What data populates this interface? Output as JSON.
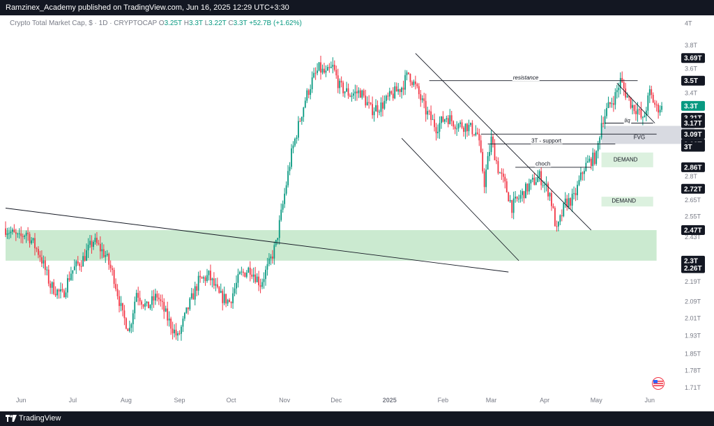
{
  "header": {
    "publisher_line": "Ramzinex_Academy published on TradingView.com, Jun 16, 2025 12:29 UTC+3:30"
  },
  "legend": {
    "symbol": "Crypto Total Market Cap, $ · 1D · CRYPTOCAP",
    "o_label": "O",
    "o": "3.25T",
    "h_label": "H",
    "h": "3.3T",
    "l_label": "L",
    "l": "3.22T",
    "c_label": "C",
    "c": "3.3T",
    "change": "+52.7B (+1.62%)"
  },
  "footer": {
    "brand": "TradingView"
  },
  "colors": {
    "up": "#089981",
    "down": "#f23645",
    "zone": "#b9e3c0",
    "fvg": "#d1d4dc",
    "tag": "#131722"
  },
  "chart_data": {
    "type": "candlestick",
    "y_scale": "log",
    "ylim": [
      1.68,
      4.05
    ],
    "x_start": "2025-05-22",
    "months": [
      "Jun",
      "Jul",
      "Aug",
      "Sep",
      "Oct",
      "Nov",
      "Dec",
      "2025",
      "Feb",
      "Mar",
      "Apr",
      "May",
      "Jun"
    ],
    "month_days": [
      9,
      39,
      70,
      101,
      131,
      162,
      192,
      223,
      254,
      282,
      313,
      343,
      374
    ],
    "y_ticks": [
      "4T",
      "3.8T",
      "3.6T",
      "3.4T",
      "3.2T",
      "3T",
      "2.8T",
      "2.65T",
      "2.55T",
      "2.43T",
      "2.19T",
      "2.09T",
      "2.01T",
      "1.93T",
      "1.85T",
      "1.78T",
      "1.71T"
    ],
    "y_tick_values": [
      4.0,
      3.8,
      3.6,
      3.4,
      3.2,
      3.0,
      2.8,
      2.65,
      2.55,
      2.43,
      2.19,
      2.09,
      2.01,
      1.93,
      1.85,
      1.78,
      1.71
    ],
    "price_tags": [
      {
        "label": "3.69T",
        "value": 3.69,
        "color": "#131722"
      },
      {
        "label": "3.5T",
        "value": 3.5,
        "color": "#131722"
      },
      {
        "label": "3.3T",
        "value": 3.3,
        "color": "#089981"
      },
      {
        "label": "3.21T",
        "value": 3.21,
        "color": "#131722"
      },
      {
        "label": "3.17T",
        "value": 3.17,
        "color": "#131722"
      },
      {
        "label": "3.09T",
        "value": 3.09,
        "color": "#131722"
      },
      {
        "label": "3.02T",
        "value": 3.02,
        "color": "#131722"
      },
      {
        "label": "3T",
        "value": 3.0,
        "color": "#131722"
      },
      {
        "label": "2.86T",
        "value": 2.86,
        "color": "#131722"
      },
      {
        "label": "2.72T",
        "value": 2.72,
        "color": "#131722"
      },
      {
        "label": "2.47T",
        "value": 2.47,
        "color": "#131722"
      },
      {
        "label": "2.3T",
        "value": 2.3,
        "color": "#131722"
      },
      {
        "label": "2.26T",
        "value": 2.26,
        "color": "#131722"
      }
    ],
    "path_points": [
      [
        0,
        2.48
      ],
      [
        8,
        2.42
      ],
      [
        12,
        2.46
      ],
      [
        20,
        2.33
      ],
      [
        26,
        2.17
      ],
      [
        33,
        2.12
      ],
      [
        38,
        2.24
      ],
      [
        45,
        2.31
      ],
      [
        51,
        2.41
      ],
      [
        58,
        2.33
      ],
      [
        63,
        2.21
      ],
      [
        68,
        2.02
      ],
      [
        72,
        1.96
      ],
      [
        76,
        2.14
      ],
      [
        82,
        2.06
      ],
      [
        88,
        2.12
      ],
      [
        94,
        2.01
      ],
      [
        100,
        1.92
      ],
      [
        106,
        2.06
      ],
      [
        112,
        2.19
      ],
      [
        118,
        2.22
      ],
      [
        124,
        2.12
      ],
      [
        130,
        2.09
      ],
      [
        136,
        2.22
      ],
      [
        142,
        2.26
      ],
      [
        148,
        2.18
      ],
      [
        153,
        2.28
      ],
      [
        157,
        2.39
      ],
      [
        161,
        2.62
      ],
      [
        166,
        2.95
      ],
      [
        170,
        3.15
      ],
      [
        174,
        3.35
      ],
      [
        178,
        3.5
      ],
      [
        182,
        3.6
      ],
      [
        186,
        3.55
      ],
      [
        190,
        3.61
      ],
      [
        194,
        3.45
      ],
      [
        200,
        3.39
      ],
      [
        206,
        3.41
      ],
      [
        212,
        3.27
      ],
      [
        218,
        3.3
      ],
      [
        224,
        3.38
      ],
      [
        230,
        3.45
      ],
      [
        234,
        3.56
      ],
      [
        238,
        3.45
      ],
      [
        244,
        3.26
      ],
      [
        250,
        3.14
      ],
      [
        256,
        3.22
      ],
      [
        262,
        3.16
      ],
      [
        268,
        3.15
      ],
      [
        274,
        3.09
      ],
      [
        278,
        2.76
      ],
      [
        282,
        3.05
      ],
      [
        286,
        2.85
      ],
      [
        290,
        2.74
      ],
      [
        294,
        2.61
      ],
      [
        298,
        2.66
      ],
      [
        304,
        2.74
      ],
      [
        310,
        2.8
      ],
      [
        316,
        2.69
      ],
      [
        320,
        2.46
      ],
      [
        325,
        2.63
      ],
      [
        330,
        2.66
      ],
      [
        336,
        2.86
      ],
      [
        340,
        2.91
      ],
      [
        343,
        2.93
      ],
      [
        346,
        3.18
      ],
      [
        350,
        3.29
      ],
      [
        354,
        3.38
      ],
      [
        357,
        3.5
      ],
      [
        360,
        3.4
      ],
      [
        364,
        3.3
      ],
      [
        367,
        3.27
      ],
      [
        370,
        3.18
      ],
      [
        374,
        3.4
      ],
      [
        378,
        3.28
      ],
      [
        381,
        3.3
      ]
    ],
    "zones": [
      {
        "name": "main-demand",
        "d0": 0,
        "d1": 378,
        "lo": 2.3,
        "hi": 2.47
      },
      {
        "name": "fvg",
        "d0": 346,
        "d1": 400,
        "lo": 3.02,
        "hi": 3.15
      },
      {
        "name": "demand-upper",
        "d0": 346,
        "d1": 376,
        "lo": 2.86,
        "hi": 2.96
      },
      {
        "name": "demand-lower",
        "d0": 346,
        "d1": 376,
        "lo": 2.61,
        "hi": 2.67
      }
    ],
    "lines": [
      {
        "name": "long-trendline",
        "d0": 0,
        "v0": 2.6,
        "d1": 292,
        "v1": 2.24
      },
      {
        "name": "channel-upper",
        "d0": 238,
        "d1": 340,
        "v0": 3.73,
        "v1": 2.47
      },
      {
        "name": "channel-lower",
        "d0": 230,
        "d1": 298,
        "v0": 3.06,
        "v1": 2.3
      },
      {
        "name": "resistance-line",
        "d0": 246,
        "d1": 367,
        "v0": 3.5,
        "v1": 3.5
      },
      {
        "name": "mini-trendline",
        "d0": 355,
        "d1": 377,
        "v0": 3.48,
        "v1": 3.17
      },
      {
        "name": "support-3t",
        "d0": 280,
        "d1": 354,
        "v0": 3.02,
        "v1": 3.02
      },
      {
        "name": "fvg-line",
        "d0": 276,
        "d1": 378,
        "v0": 3.09,
        "v1": 3.09
      },
      {
        "name": "choch-line",
        "d0": 296,
        "d1": 340,
        "v0": 2.86,
        "v1": 2.86
      },
      {
        "name": "liq-line",
        "d0": 348,
        "d1": 376,
        "v0": 3.17,
        "v1": 3.17
      }
    ],
    "annotations": [
      {
        "text": "resistance",
        "d": 302,
        "v": 3.51,
        "italic": true
      },
      {
        "text": "3T - support",
        "d": 314,
        "v": 3.03,
        "italic": false
      },
      {
        "text": "choch",
        "d": 312,
        "v": 2.87,
        "italic": false
      },
      {
        "text": "liq",
        "d": 361,
        "v": 3.175,
        "italic": true
      },
      {
        "text": "FVG",
        "d": 368,
        "v": 3.055,
        "italic": false
      },
      {
        "text": "DEMAND",
        "d": 360,
        "v": 2.9,
        "italic": false
      },
      {
        "text": "DEMAND",
        "d": 359,
        "v": 2.635,
        "italic": false
      }
    ]
  }
}
